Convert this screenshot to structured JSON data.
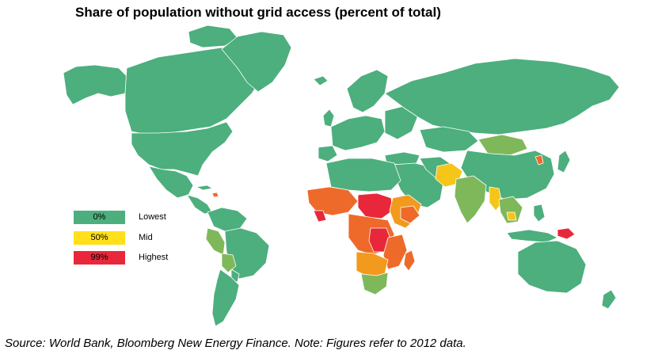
{
  "title": "Share of population without grid access (percent of total)",
  "source": "Source: World Bank, Bloomberg New Energy Finance. Note: Figures refer to 2012 data.",
  "legend": {
    "items": [
      {
        "value": "0%",
        "label": "Lowest",
        "color": "#4caf7d"
      },
      {
        "value": "50%",
        "label": "Mid",
        "color": "#ffe01a"
      },
      {
        "value": "99%",
        "label": "Highest",
        "color": "#e8283a"
      }
    ]
  },
  "colors": {
    "low": "#4caf7d",
    "low_mid": "#7fb85a",
    "mid": "#f5c518",
    "mid_high": "#f29a1e",
    "high_mid": "#ee6a2a",
    "high": "#e8283a",
    "border": "#ffffff"
  }
}
